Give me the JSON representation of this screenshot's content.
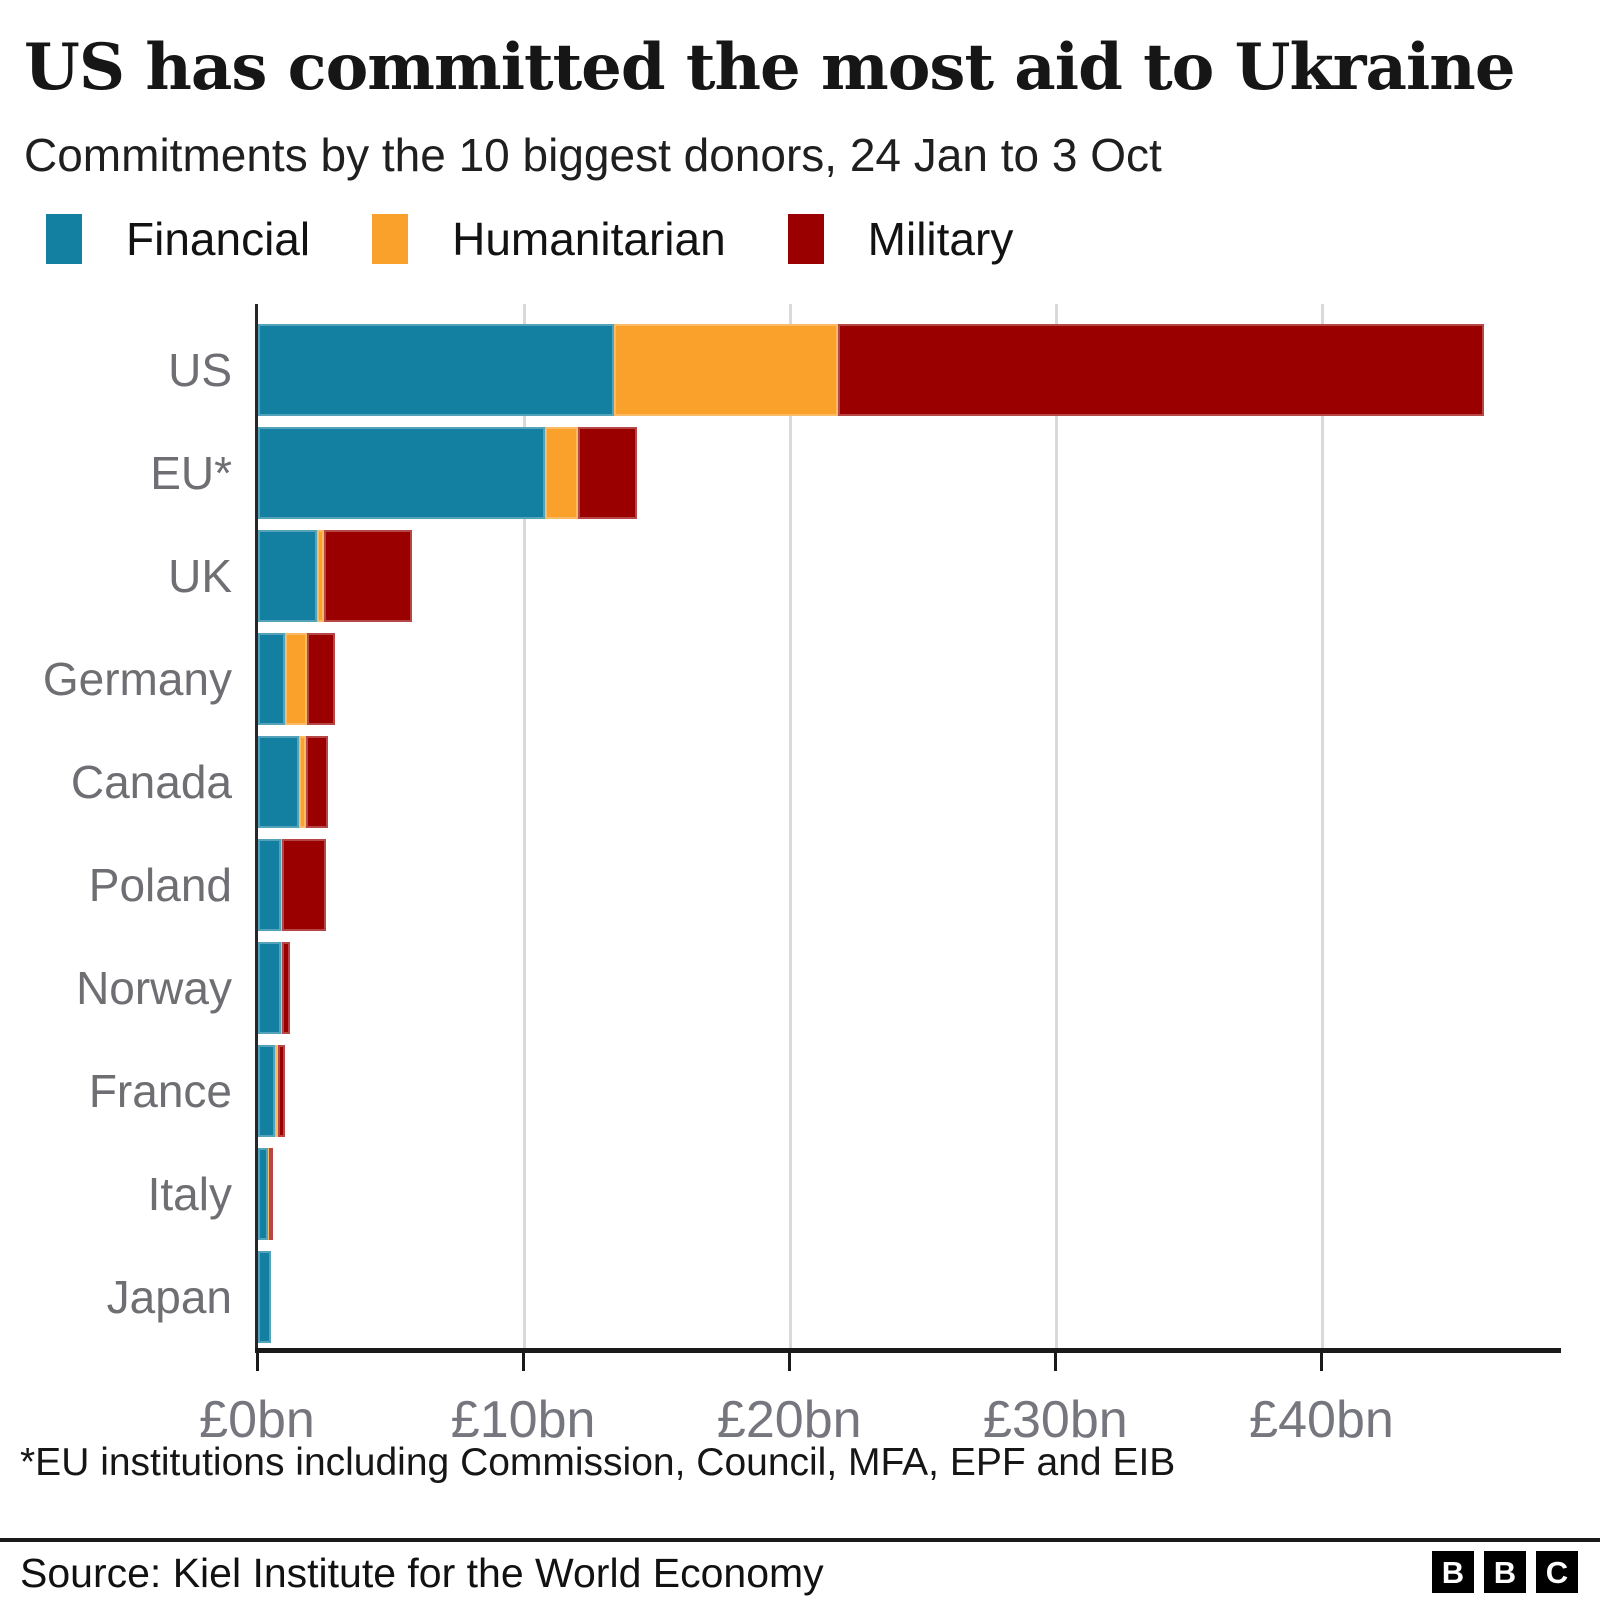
{
  "header": {
    "title": "US has committed the most aid to Ukraine",
    "subtitle": "Commitments by the 10 biggest donors, 24 Jan to 3 Oct"
  },
  "chart_data": {
    "type": "bar",
    "orientation": "horizontal",
    "stacked": true,
    "unit": "£bn",
    "categories": [
      "US",
      "EU*",
      "UK",
      "Germany",
      "Canada",
      "Poland",
      "Norway",
      "France",
      "Italy",
      "Japan"
    ],
    "series": [
      {
        "name": "Financial",
        "color": "#1380A1",
        "values": [
          13.4,
          10.8,
          2.2,
          1.0,
          1.55,
          0.85,
          0.85,
          0.65,
          0.38,
          0.5
        ]
      },
      {
        "name": "Humanitarian",
        "color": "#FAA12B",
        "values": [
          8.4,
          1.25,
          0.3,
          0.85,
          0.25,
          0.07,
          0.06,
          0.1,
          0.05,
          0
        ]
      },
      {
        "name": "Military",
        "color": "#9A0000",
        "values": [
          24.3,
          2.2,
          3.3,
          1.05,
          0.85,
          1.65,
          0.3,
          0.25,
          0.15,
          0
        ]
      }
    ],
    "totals": [
      46.1,
      14.25,
      5.8,
      2.9,
      2.65,
      2.57,
      1.21,
      1.0,
      0.58,
      0.5
    ],
    "xlim": [
      0,
      49
    ],
    "xticks": [
      0,
      10,
      20,
      30,
      40
    ],
    "xtick_labels": [
      "£0bn",
      "£10bn",
      "£20bn",
      "£30bn",
      "£40bn"
    ],
    "grid": "vertical",
    "gridline_color": "#d9d9d9",
    "legend_position": "top"
  },
  "footnote": "*EU institutions including Commission, Council, MFA, EPF and EIB",
  "source": "Source: Kiel Institute for the World Economy",
  "logo_letters": [
    "B",
    "B",
    "C"
  ]
}
